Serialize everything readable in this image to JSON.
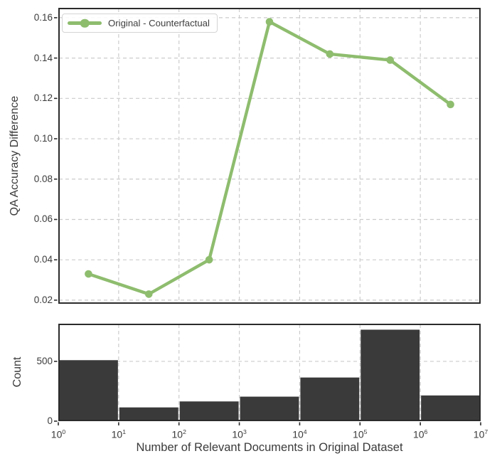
{
  "figure": {
    "background": "#ffffff",
    "text_color": "#3b3b3b",
    "spine_color": "#2b2b2b",
    "grid_color": "#cccccc"
  },
  "chart_data": [
    {
      "type": "line",
      "panel": "top",
      "ylabel": "QA Accuracy Difference",
      "legend_label": "Original - Counterfactual",
      "legend_position": "upper left",
      "line_color": "#8ebd6e",
      "marker": "circle",
      "x_scale": "log10",
      "xlim_log10": [
        0,
        7
      ],
      "x_log10": [
        0.5,
        1.5,
        2.5,
        3.5,
        4.5,
        5.5,
        6.5
      ],
      "y_values": [
        0.033,
        0.023,
        0.04,
        0.158,
        0.142,
        0.139,
        0.117
      ],
      "yticks": [
        0.02,
        0.04,
        0.06,
        0.08,
        0.1,
        0.12,
        0.14,
        0.16
      ],
      "ylim": [
        0.0182,
        0.1649
      ],
      "grid": true
    },
    {
      "type": "bar",
      "panel": "bottom",
      "ylabel": "Count",
      "xlabel": "Number of Relevant Documents in Original Dataset",
      "bar_color": "#3a3a3a",
      "x_scale": "log10",
      "xlim_log10": [
        0,
        7
      ],
      "bin_edges_log10": [
        0,
        1,
        2,
        3,
        4,
        5,
        6,
        7
      ],
      "counts": [
        510,
        115,
        165,
        205,
        365,
        765,
        215
      ],
      "yticks": [
        0,
        500
      ],
      "ylim": [
        0,
        815
      ],
      "xtick_base": "10",
      "xtick_exponents": [
        0,
        1,
        2,
        3,
        4,
        5,
        6,
        7
      ],
      "grid": true
    }
  ]
}
